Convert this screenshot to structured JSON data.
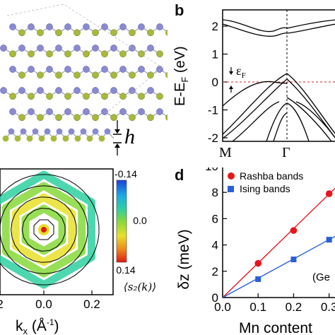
{
  "panels": {
    "a": {
      "h_label": "h",
      "atoms": {
        "metal_color": "#8a8ad2",
        "chalcogen_color": "#a8b83c",
        "bond_color": "#9aa0b4"
      }
    },
    "b": {
      "label": "b",
      "ylabel": "E-E",
      "ylabel_sub": "F",
      "ylabel_unit": " (eV)",
      "eF_label": "ε",
      "eF_sub": "F",
      "kpoints": [
        "M",
        "Γ"
      ],
      "yticks": [
        "-2",
        "-1",
        "0",
        "1",
        "2"
      ]
    },
    "c": {
      "xlabel": "k",
      "xlabel_sub": "x",
      "xlabel_unit": " (Å",
      "xlabel_exp": "-1",
      "xlabel_close": ")",
      "xticks": [
        "2",
        "0.0",
        "0.2"
      ],
      "colorbar_ticks": [
        "-0.14",
        "0.0",
        "0.14"
      ],
      "colorbar_label": "⟨s₂(k)⟩"
    },
    "d": {
      "label": "d",
      "ylabel": "δz (meV)",
      "xlabel": "Mn content",
      "annotation": "(Ge",
      "xticks": [
        "0.0",
        "0.1",
        "0.2",
        "0.3"
      ],
      "yticks": [
        "0",
        "2",
        "4",
        "6",
        "8",
        "10"
      ]
    }
  },
  "chart_data": [
    {
      "type": "line",
      "panel": "b",
      "title": "",
      "xlabel": "",
      "ylabel": "E-EF (eV)",
      "ylim": [
        -2.5,
        2.5
      ],
      "xticklabels": [
        "M",
        "Γ"
      ],
      "grid": false
    },
    {
      "type": "scatter",
      "panel": "d",
      "title": "",
      "xlabel": "Mn content",
      "ylabel": "δz (meV)",
      "xlim": [
        0.0,
        0.3
      ],
      "ylim": [
        0,
        10
      ],
      "legend": "top-left",
      "series": [
        {
          "name": "Rashba bands",
          "color": "#e8161c",
          "marker": "circle",
          "x": [
            0.1,
            0.2,
            0.3
          ],
          "y": [
            2.6,
            5.1,
            7.9
          ],
          "fit": [
            [
              0.0,
              0.0
            ],
            [
              0.32,
              8.4
            ]
          ]
        },
        {
          "name": "Ising bands",
          "color": "#2a5fd8",
          "marker": "square",
          "x": [
            0.1,
            0.2,
            0.3
          ],
          "y": [
            1.4,
            2.9,
            4.4
          ],
          "fit": [
            [
              0.0,
              0.0
            ],
            [
              0.32,
              4.7
            ]
          ]
        }
      ]
    }
  ]
}
